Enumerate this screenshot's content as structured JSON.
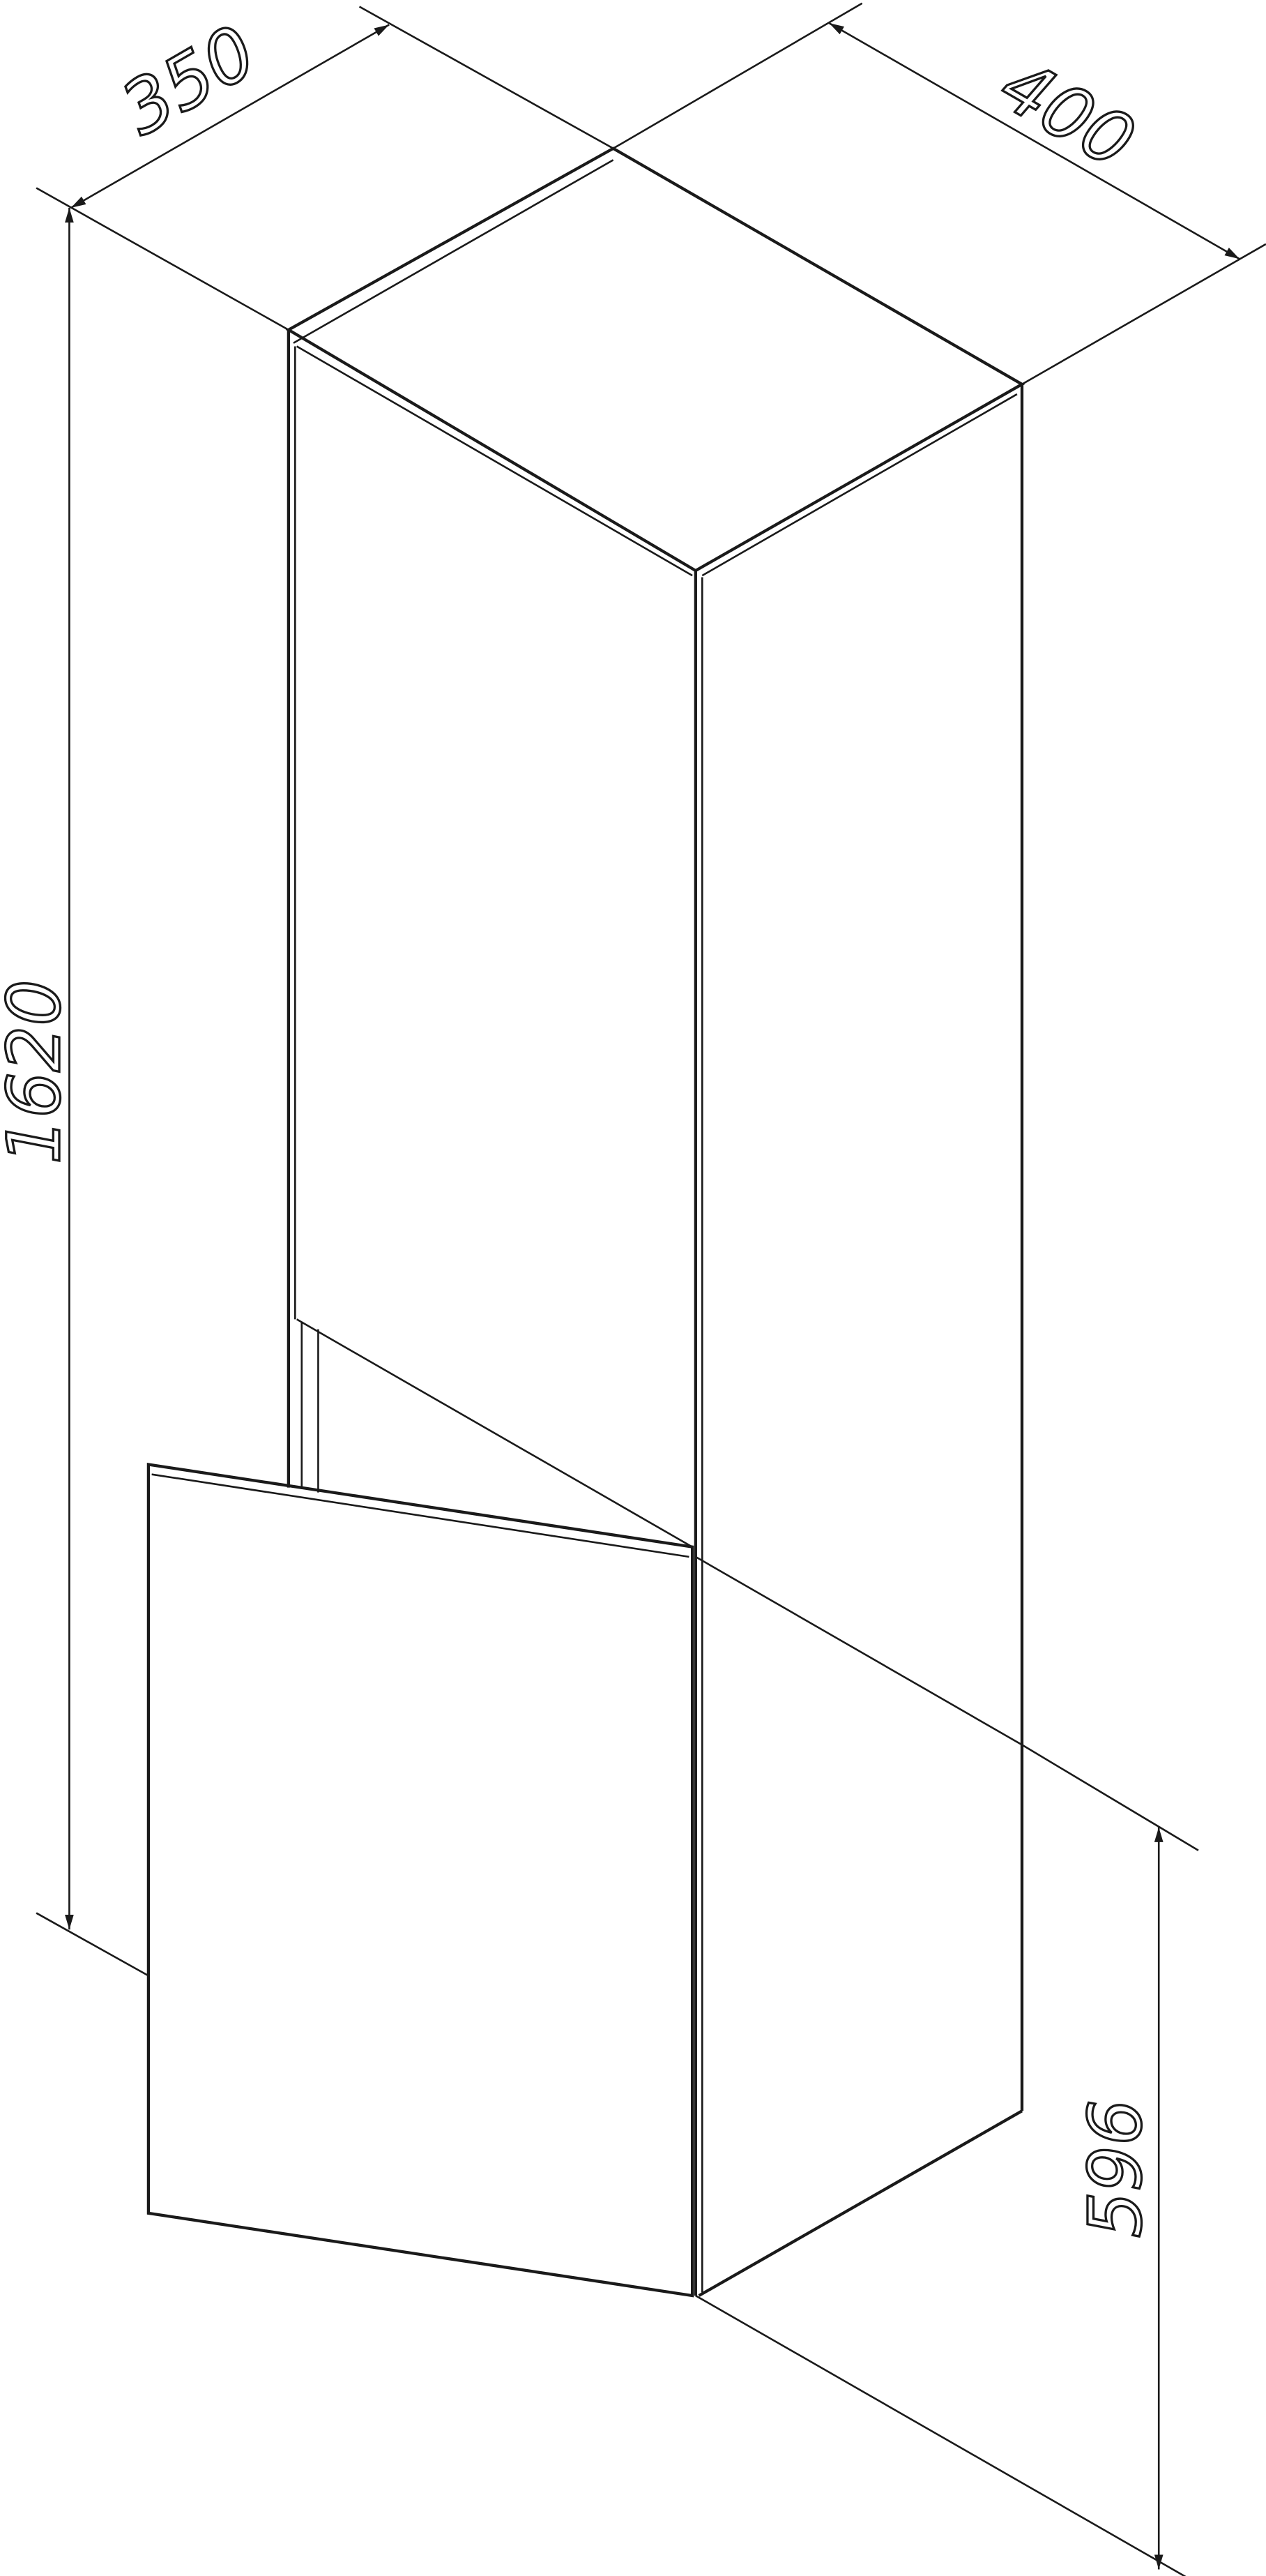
{
  "dimensions": {
    "depth": "350",
    "width": "400",
    "height": "1620",
    "door_height": "596"
  },
  "colors": {
    "line": "#1a1a1a",
    "background": "#ffffff"
  }
}
